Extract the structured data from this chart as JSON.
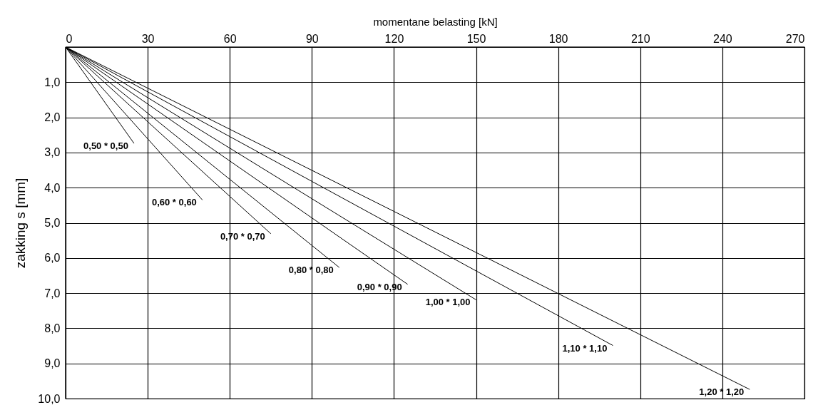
{
  "chart_data": {
    "type": "line",
    "xlabel": "momentane belasting [kN]",
    "ylabel": "zakking s   [mm]",
    "xlim": [
      0,
      270
    ],
    "xticks": [
      0,
      30,
      60,
      90,
      120,
      150,
      180,
      210,
      240,
      270
    ],
    "ylim": [
      10,
      0
    ],
    "yticks": [
      {
        "value": 0,
        "label": null
      },
      {
        "value": 1,
        "label": "1,0"
      },
      {
        "value": 2,
        "label": "2,0"
      },
      {
        "value": 3,
        "label": "3,0"
      },
      {
        "value": 4,
        "label": "4,0"
      },
      {
        "value": 5,
        "label": "5,0"
      },
      {
        "value": 6,
        "label": "6,0"
      },
      {
        "value": 7,
        "label": "7,0"
      },
      {
        "value": 8,
        "label": "8,0"
      },
      {
        "value": 9,
        "label": "9,0"
      },
      {
        "value": 10,
        "label": "10,0"
      }
    ],
    "grid": true,
    "marker": "none",
    "line_style": "solid",
    "series": [
      {
        "name": "0,50 * 0,50",
        "color": "#000000",
        "x": [
          0,
          25
        ],
        "values": [
          0,
          2.74
        ]
      },
      {
        "name": "0,60 * 0,60",
        "color": "#000000",
        "x": [
          0,
          50
        ],
        "values": [
          0,
          4.35
        ]
      },
      {
        "name": "0,70 * 0,70",
        "color": "#000000",
        "x": [
          0,
          75
        ],
        "values": [
          0,
          5.31
        ]
      },
      {
        "name": "0,80 * 0,80",
        "color": "#000000",
        "x": [
          0,
          100
        ],
        "values": [
          0,
          6.27
        ]
      },
      {
        "name": "0,90 * 0,90",
        "color": "#000000",
        "x": [
          0,
          125
        ],
        "values": [
          0,
          6.75
        ]
      },
      {
        "name": "1,00 * 1,00",
        "color": "#000000",
        "x": [
          0,
          150
        ],
        "values": [
          0,
          7.19
        ]
      },
      {
        "name": "1,10 * 1,10",
        "color": "#000000",
        "x": [
          0,
          200
        ],
        "values": [
          0,
          8.49
        ]
      },
      {
        "name": "1,20 * 1,20",
        "color": "#000000",
        "x": [
          0,
          250
        ],
        "values": [
          0,
          9.74
        ]
      }
    ]
  }
}
